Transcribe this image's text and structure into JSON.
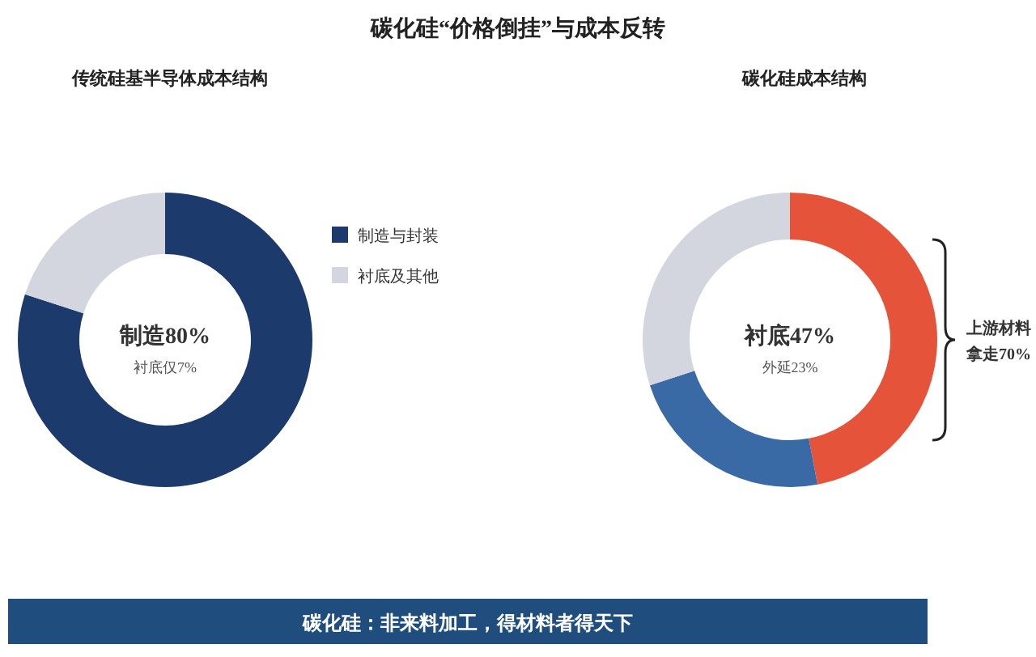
{
  "chart_data": [
    {
      "type": "other",
      "title": "碳化硅“价格倒挂”与成本反转",
      "annotations": [
        "碳化硅：非来料加工，得材料者得天下"
      ]
    },
    {
      "type": "donut",
      "title": "传统硅基半导体成本结构",
      "categories": [
        "制造与封装",
        "衬底及其他"
      ],
      "values": [
        80,
        20
      ],
      "colors": [
        "#1d3a6d",
        "#d3d6de"
      ],
      "legend": "right",
      "annotations": [
        "制造80%",
        "衬底仅7%"
      ]
    },
    {
      "type": "donut",
      "title": "碳化硅成本结构",
      "categories": [
        null,
        null,
        null
      ],
      "values": [
        47,
        23,
        30
      ],
      "colors": [
        "#e5533a",
        "#3a6aa5",
        "#d3d6de"
      ],
      "legend": false,
      "annotations": [
        "衬底47%",
        "外延23%",
        "上游材料拿走70%"
      ]
    }
  ]
}
